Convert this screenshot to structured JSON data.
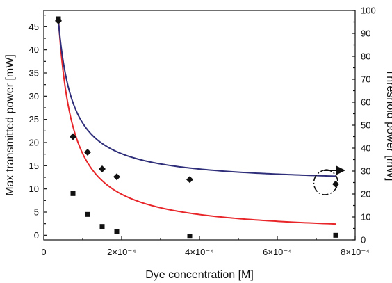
{
  "chart_data": {
    "type": "scatter",
    "xlabel": "Dye concentration [M]",
    "ylabel": "Max transmitted power [mW]",
    "y2label": "Threshold power [mW]",
    "xlim": [
      0,
      0.0008
    ],
    "ylim": [
      -1,
      48.5
    ],
    "y2lim": [
      0,
      100
    ],
    "x_tick_labels": [
      {
        "value": 0,
        "label": "0"
      },
      {
        "value": 0.0002,
        "label": "2×10⁻⁴"
      },
      {
        "value": 0.0004,
        "label": "4×10⁻⁴"
      },
      {
        "value": 0.0006,
        "label": "6×10⁻⁴"
      },
      {
        "value": 0.0008,
        "label": "8×10⁻⁴"
      }
    ],
    "y_ticks": [
      0,
      5,
      10,
      15,
      20,
      25,
      30,
      35,
      40,
      45
    ],
    "y2_ticks": [
      0,
      10,
      20,
      30,
      40,
      50,
      60,
      70,
      80,
      90,
      100
    ],
    "series": [
      {
        "axis": "left",
        "marker": "square",
        "color": "#111111",
        "x": [
          3.75e-05,
          7.5e-05,
          0.0001125,
          0.00015,
          0.0001875,
          0.000375,
          0.00075
        ],
        "y": [
          46.7,
          9.0,
          4.5,
          1.9,
          0.8,
          -0.2,
          0.0
        ]
      },
      {
        "axis": "right",
        "marker": "diamond",
        "color": "#111111",
        "x": [
          3.75e-05,
          7.5e-05,
          0.0001125,
          0.00015,
          0.0001875,
          0.000375,
          0.00075
        ],
        "y": [
          95.5,
          45.0,
          38.2,
          30.9,
          27.5,
          26.3,
          24.3
        ]
      }
    ],
    "fits": [
      {
        "axis": "left",
        "color": "#e8262a",
        "y0": 0.1,
        "A": 0.00175,
        "x_from": 3.75e-05,
        "x_to": 0.00075
      },
      {
        "axis": "right",
        "color": "#2e2e7a",
        "y0": 24.2,
        "A": 0.00267,
        "x_from": 3.75e-05,
        "x_to": 0.00075
      }
    ]
  }
}
